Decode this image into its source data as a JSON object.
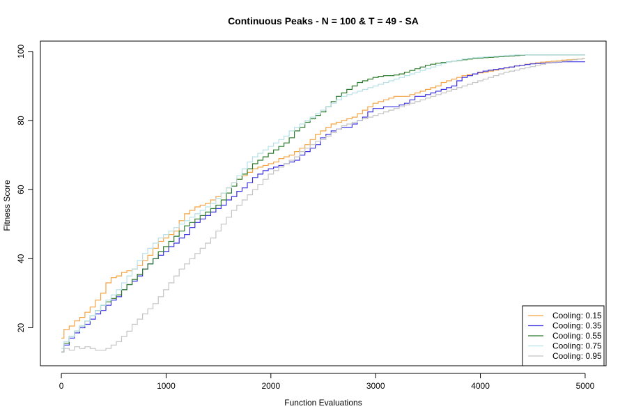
{
  "chart_data": {
    "type": "line",
    "title": "Continuous Peaks - N = 100 & T = 49 - SA",
    "xlabel": "Function Evaluations",
    "ylabel": "Fitness Score",
    "xlim": [
      -200,
      5200
    ],
    "ylim": [
      9,
      103
    ],
    "xticks": [
      0,
      1000,
      2000,
      3000,
      4000,
      5000
    ],
    "yticks": [
      20,
      40,
      60,
      80,
      100
    ],
    "legend_position": "bottom-right",
    "x": [
      0,
      50,
      100,
      150,
      200,
      250,
      300,
      350,
      400,
      450,
      500,
      550,
      600,
      650,
      700,
      750,
      800,
      850,
      900,
      950,
      1000,
      1050,
      1100,
      1150,
      1200,
      1250,
      1300,
      1350,
      1400,
      1450,
      1500,
      1550,
      1600,
      1650,
      1700,
      1750,
      1800,
      1850,
      1900,
      1950,
      2000,
      2050,
      2100,
      2150,
      2200,
      2250,
      2300,
      2350,
      2400,
      2450,
      2500,
      2550,
      2600,
      2650,
      2700,
      2750,
      2800,
      2850,
      2900,
      2950,
      3000,
      3050,
      3100,
      3150,
      3200,
      3250,
      3300,
      3350,
      3400,
      3450,
      3500,
      3550,
      3600,
      3650,
      3700,
      3750,
      3800,
      3850,
      3900,
      3950,
      4000,
      4050,
      4100,
      4150,
      4200,
      4250,
      4300,
      4350,
      4400,
      4450,
      4500,
      4550,
      4600,
      4650,
      4700,
      4750,
      4800,
      4850,
      4900,
      4950,
      5000
    ],
    "series": [
      {
        "name": "Cooling: 0.15",
        "color": "#f4a442",
        "values": [
          17,
          19.5,
          20.5,
          22,
          23,
          24.5,
          26,
          28,
          30,
          33,
          34.5,
          35,
          36,
          36.5,
          37,
          38,
          39.5,
          41,
          43,
          45,
          46,
          47,
          48,
          51,
          53,
          54,
          55,
          55.5,
          56,
          57,
          58,
          59,
          60.5,
          62,
          63,
          64,
          65,
          66,
          66.5,
          67,
          67.5,
          68,
          69,
          69.5,
          70,
          71,
          72,
          73,
          74.5,
          76,
          77,
          78,
          79,
          79.5,
          80,
          80.5,
          81,
          82,
          83,
          84,
          85,
          85.5,
          86,
          86.5,
          87,
          87,
          87,
          87.5,
          88,
          88.5,
          89,
          89.5,
          90,
          91,
          91.5,
          92,
          92.5,
          93,
          93.3,
          93.5,
          93.8,
          94,
          94.3,
          94.6,
          94.9,
          95.2,
          95.5,
          95.8,
          96,
          96.3,
          96.5,
          96.7,
          96.9,
          97,
          97.2,
          97.3,
          97.5,
          97.6,
          97.7,
          97.8,
          98
        ]
      },
      {
        "name": "Cooling: 0.35",
        "color": "#3a32e0",
        "values": [
          13,
          15,
          17,
          18.5,
          20,
          21,
          22.5,
          24,
          25,
          26.5,
          28,
          29,
          31,
          32.5,
          33.5,
          35,
          37,
          38.5,
          40,
          41,
          42,
          43.5,
          44.5,
          46,
          47,
          49,
          50.5,
          51.5,
          52.5,
          53.5,
          54.5,
          55.5,
          57,
          58,
          59.5,
          60.5,
          62,
          63.5,
          64.5,
          65.5,
          66,
          66.5,
          67,
          67.5,
          68,
          68.5,
          70,
          71,
          72,
          73,
          75,
          76,
          77,
          77.5,
          78,
          78,
          79,
          80,
          81,
          82.5,
          83.5,
          83.5,
          84,
          84,
          84,
          84.5,
          85,
          86,
          87,
          87,
          87.5,
          88,
          88.5,
          89,
          89.5,
          90,
          91.5,
          92.5,
          93,
          93.5,
          94,
          94.3,
          94.6,
          94.8,
          95,
          95.3,
          95.5,
          95.8,
          96,
          96.2,
          96.4,
          96.5,
          96.6,
          96.7,
          96.8,
          96.9,
          97,
          97,
          97,
          97,
          97
        ]
      },
      {
        "name": "Cooling: 0.55",
        "color": "#2b7a2b",
        "values": [
          13,
          15.5,
          17.5,
          19,
          20.5,
          22,
          23.5,
          25,
          26.5,
          27.5,
          28.5,
          29.5,
          31,
          32.5,
          34,
          35.5,
          37,
          38.5,
          40,
          42,
          43.5,
          45,
          46.5,
          48,
          49.5,
          50.5,
          51.5,
          52.5,
          53.5,
          54.5,
          55.5,
          57,
          59,
          61,
          63,
          64.5,
          66,
          67.5,
          68.5,
          69.5,
          70.5,
          71.5,
          72.5,
          73.5,
          75,
          77,
          78,
          79.5,
          80.5,
          81.5,
          82.5,
          84,
          85.5,
          87,
          88,
          89,
          90,
          91,
          91.5,
          92,
          92.5,
          92.8,
          93,
          93,
          93.2,
          93.5,
          94,
          94.5,
          95,
          95.5,
          96,
          96.3,
          96.6,
          96.8,
          97,
          97.2,
          97.4,
          97.6,
          97.8,
          98,
          98.1,
          98.2,
          98.3,
          98.4,
          98.5,
          98.6,
          98.7,
          98.8,
          98.9,
          99,
          99,
          99,
          99,
          99,
          99,
          99,
          99,
          99,
          99,
          99,
          99
        ]
      },
      {
        "name": "Cooling: 0.75",
        "color": "#b6e0e6",
        "values": [
          14,
          16,
          17.5,
          19,
          20.5,
          22,
          23.5,
          25,
          26.5,
          28,
          29.5,
          31,
          33,
          35,
          37,
          39.5,
          41.5,
          43,
          44.5,
          46,
          47,
          48,
          49,
          50,
          51,
          52,
          53,
          54,
          55,
          56,
          57.5,
          59,
          60.5,
          62,
          64,
          66,
          68,
          69.5,
          70.5,
          71.5,
          72.5,
          73.5,
          74.5,
          75.5,
          77,
          78,
          79,
          80,
          81,
          82,
          83,
          84,
          85,
          86,
          87,
          87.5,
          88,
          88.5,
          89,
          89.5,
          90,
          90.5,
          91,
          91.5,
          92,
          92.5,
          93,
          93.5,
          94,
          94.5,
          95,
          95.5,
          96,
          96.5,
          97,
          97.2,
          97.5,
          97.8,
          98,
          98.2,
          98.3,
          98.4,
          98.5,
          98.6,
          98.7,
          98.8,
          98.9,
          99,
          99,
          99,
          99,
          99,
          99,
          99,
          99,
          99,
          99,
          99,
          99,
          99,
          99
        ]
      },
      {
        "name": "Cooling: 0.95",
        "color": "#c4c4c4",
        "values": [
          13,
          14,
          13.5,
          14.5,
          14,
          14.5,
          14,
          13.5,
          13.5,
          14,
          15,
          16,
          17.5,
          19,
          21,
          22.5,
          24,
          25.5,
          27,
          29,
          31,
          33,
          35,
          37,
          38.5,
          40,
          41.5,
          43,
          44.5,
          46,
          48,
          50,
          52,
          54,
          55.5,
          57,
          58.5,
          60,
          61.5,
          63,
          64.5,
          65.5,
          66.5,
          67.5,
          68.5,
          69.5,
          71,
          72,
          73,
          74,
          74.5,
          75.5,
          76.5,
          77.5,
          78.5,
          79,
          79.5,
          80,
          80.5,
          81,
          81.5,
          82,
          82.5,
          83,
          83.5,
          84,
          84.5,
          85,
          85.5,
          86,
          86.5,
          87,
          87.5,
          88,
          88.5,
          89,
          89.5,
          90,
          90.5,
          91,
          91.5,
          92,
          92.5,
          93,
          93.5,
          94,
          94.3,
          94.6,
          95,
          95.3,
          95.6,
          96,
          96.3,
          96.6,
          96.9,
          97,
          97.2,
          97.4,
          97.6,
          97.8,
          98
        ]
      }
    ]
  }
}
